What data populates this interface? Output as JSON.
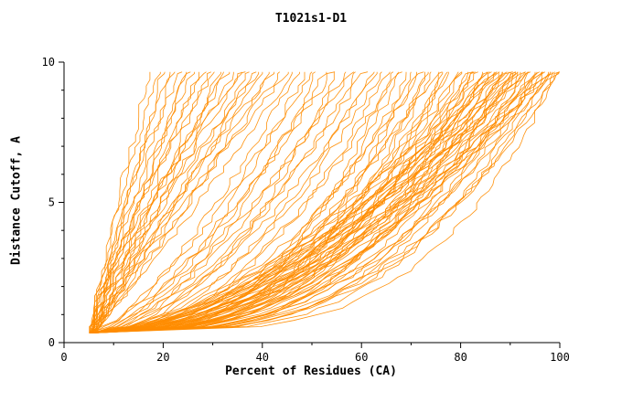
{
  "chart_data": {
    "type": "line",
    "title": "T1021s1-D1",
    "xlabel": "Percent of Residues (CA)",
    "ylabel": "Distance Cutoff, A",
    "xlim": [
      0,
      100
    ],
    "ylim": [
      0,
      10
    ],
    "x_ticks": [
      0,
      20,
      40,
      60,
      80,
      100
    ],
    "y_ticks": [
      0,
      5,
      10
    ],
    "x_minor_step": 10,
    "y_minor_step": 1,
    "grid": false,
    "legend": "none",
    "line_color": "#ff8c00",
    "axis_color": "#000000",
    "y_start": 0.35,
    "y_end": 9.65,
    "seed": 42,
    "curves_note": "Each curve is [x_at_bottom_percent, x_at_top_percent, shape_exponent]; x(y)=x0+(xtop-x0)*t^p, t normalized distance cutoff. Approx. 108 model GDT curves.",
    "curves": [
      [
        5.0,
        17.5,
        1.1
      ],
      [
        5.5,
        19,
        1.3
      ],
      [
        4.8,
        20,
        0.95
      ],
      [
        6.0,
        21,
        1.2
      ],
      [
        5.2,
        22,
        1.0
      ],
      [
        5.8,
        23.5,
        1.4
      ],
      [
        5.0,
        24,
        0.9
      ],
      [
        6.2,
        25,
        1.1
      ],
      [
        5.4,
        26,
        1.25
      ],
      [
        5.9,
        27,
        0.95
      ],
      [
        5.1,
        28,
        1.15
      ],
      [
        6.4,
        29,
        1.0
      ],
      [
        5.3,
        30,
        1.3
      ],
      [
        5.7,
        31,
        0.9
      ],
      [
        5.0,
        32,
        1.05
      ],
      [
        6.1,
        33,
        1.2
      ],
      [
        5.5,
        34,
        0.95
      ],
      [
        5.9,
        35.5,
        1.1
      ],
      [
        5.2,
        36,
        1.35
      ],
      [
        6.3,
        37,
        1.0
      ],
      [
        5.6,
        38,
        0.9
      ],
      [
        5.0,
        39,
        1.2
      ],
      [
        6.0,
        40,
        1.05
      ],
      [
        5.4,
        41,
        0.85
      ],
      [
        5.8,
        42,
        1.15
      ],
      [
        5.2,
        43.5,
        0.95
      ],
      [
        6.2,
        45,
        1.1
      ],
      [
        5.5,
        46,
        0.9
      ],
      [
        5.0,
        47,
        0.7
      ],
      [
        5.6,
        48.5,
        0.6
      ],
      [
        6.0,
        50,
        0.75
      ],
      [
        5.3,
        51,
        0.55
      ],
      [
        5.8,
        52.5,
        0.65
      ],
      [
        5.1,
        54,
        0.7
      ],
      [
        6.2,
        55,
        0.5
      ],
      [
        5.5,
        56.5,
        0.6
      ],
      [
        5.9,
        58,
        0.68
      ],
      [
        5.2,
        59,
        0.55
      ],
      [
        6.0,
        60.5,
        0.62
      ],
      [
        5.4,
        62,
        0.5
      ],
      [
        5.7,
        63,
        0.58
      ],
      [
        5.1,
        64,
        0.52
      ],
      [
        5.3,
        65,
        0.45
      ],
      [
        5.8,
        66,
        0.35
      ],
      [
        5.1,
        67,
        0.5
      ],
      [
        6.1,
        68,
        0.4
      ],
      [
        5.5,
        69,
        0.3
      ],
      [
        5.9,
        70,
        0.45
      ],
      [
        5.2,
        71,
        0.38
      ],
      [
        6.0,
        72,
        0.5
      ],
      [
        5.4,
        72.8,
        0.33
      ],
      [
        5.7,
        73.5,
        0.42
      ],
      [
        5.0,
        74.2,
        0.36
      ],
      [
        6.2,
        75,
        0.48
      ],
      [
        5.5,
        75.8,
        0.3
      ],
      [
        5.8,
        76.5,
        0.4
      ],
      [
        5.2,
        77.2,
        0.35
      ],
      [
        6.0,
        78,
        0.45
      ],
      [
        5.4,
        78.8,
        0.32
      ],
      [
        5.9,
        79.5,
        0.42
      ],
      [
        5.1,
        80.2,
        0.36
      ],
      [
        6.1,
        81,
        0.28
      ],
      [
        5.6,
        81.8,
        0.4
      ],
      [
        5.3,
        82.5,
        0.34
      ],
      [
        5.8,
        83.2,
        0.44
      ],
      [
        5.0,
        84,
        0.3
      ],
      [
        6.0,
        84.8,
        0.38
      ],
      [
        5.5,
        85.5,
        0.45
      ],
      [
        5.2,
        86.2,
        0.32
      ],
      [
        5.9,
        87,
        0.4
      ],
      [
        5.4,
        87.8,
        0.35
      ],
      [
        6.2,
        88.5,
        0.28
      ],
      [
        5.6,
        89.2,
        0.42
      ],
      [
        5.1,
        90,
        0.33
      ],
      [
        5.8,
        90.8,
        0.38
      ],
      [
        5.3,
        91.5,
        0.45
      ],
      [
        6.0,
        92.2,
        0.3
      ],
      [
        5.5,
        93,
        0.4
      ],
      [
        5.2,
        93.8,
        0.34
      ],
      [
        5.9,
        94.5,
        0.42
      ],
      [
        5.4,
        95.2,
        0.28
      ],
      [
        6.1,
        96,
        0.36
      ],
      [
        5.6,
        96.8,
        0.44
      ],
      [
        5.0,
        97.5,
        0.31
      ],
      [
        5.8,
        98.2,
        0.39
      ],
      [
        5.3,
        99,
        0.33
      ],
      [
        6.0,
        99.6,
        0.27
      ],
      [
        5.5,
        100,
        0.35
      ],
      [
        5.5,
        83,
        0.55
      ],
      [
        5.2,
        86,
        0.5
      ],
      [
        5.8,
        89,
        0.52
      ],
      [
        5.4,
        92,
        0.5
      ],
      [
        6.0,
        95,
        0.55
      ],
      [
        5.6,
        97,
        0.5
      ],
      [
        5.1,
        85,
        0.6
      ],
      [
        5.9,
        88,
        0.58
      ],
      [
        5.3,
        91,
        0.55
      ],
      [
        5.7,
        94,
        0.6
      ],
      [
        5.2,
        96,
        0.52
      ],
      [
        6.1,
        98,
        0.56
      ],
      [
        5.5,
        87.5,
        0.62
      ],
      [
        5.0,
        90.5,
        0.6
      ],
      [
        5.8,
        93.5,
        0.58
      ],
      [
        5.4,
        99.3,
        0.5
      ],
      [
        6.0,
        86.8,
        0.55
      ],
      [
        5.6,
        89.8,
        0.6
      ],
      [
        5.2,
        92.8,
        0.57
      ],
      [
        5.9,
        97.8,
        0.53
      ]
    ]
  }
}
